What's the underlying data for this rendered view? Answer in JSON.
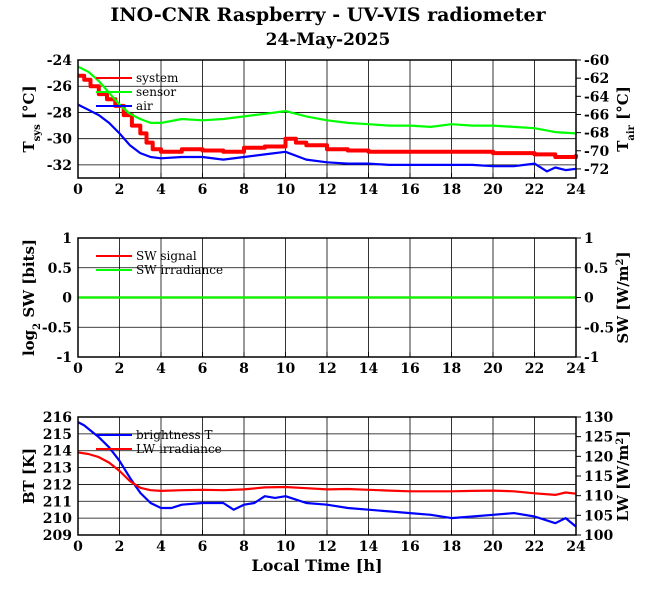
{
  "title": "INO-CNR Raspberry - UV-VIS radiometer",
  "subtitle": "24-May-2025",
  "colors": {
    "red": "#ff0000",
    "green": "#00ff00",
    "blue": "#0000ff"
  },
  "chart_data": [
    {
      "type": "line",
      "id": "temp",
      "xlabel": "",
      "ylabel_left": {
        "main": "T",
        "sub": "sys",
        "unit": " [°C]"
      },
      "ylabel_right": {
        "main": "T",
        "sub": "air",
        "unit": " [°C]"
      },
      "xlim": [
        0,
        24
      ],
      "ylim_left": [
        -33,
        -24
      ],
      "ylim_right": [
        -73,
        -60
      ],
      "xticks": [
        "0",
        "2",
        "4",
        "6",
        "8",
        "10",
        "12",
        "14",
        "16",
        "18",
        "20",
        "22",
        "24"
      ],
      "yticks_left": [
        "-24",
        "-26",
        "-28",
        "-30",
        "-32"
      ],
      "yticks_right": [
        "-60",
        "-62",
        "-64",
        "-66",
        "-68",
        "-70",
        "-72"
      ],
      "grid": true,
      "legend": "top-left",
      "series": [
        {
          "name": "system",
          "color": "red",
          "axis": "left",
          "style": "steps",
          "x": [
            0,
            0.3,
            0.6,
            1,
            1.4,
            1.8,
            2.2,
            2.6,
            3,
            3.3,
            3.6,
            4,
            4.5,
            5,
            6,
            7,
            8,
            9,
            10,
            10.5,
            11,
            12,
            13,
            14,
            16,
            18,
            20,
            22,
            23,
            24
          ],
          "y": [
            -25.2,
            -25.5,
            -26,
            -26.6,
            -27,
            -27.5,
            -28.2,
            -29,
            -29.6,
            -30.3,
            -30.8,
            -31,
            -31,
            -30.8,
            -30.9,
            -31,
            -30.7,
            -30.6,
            -30,
            -30.3,
            -30.5,
            -30.8,
            -30.9,
            -31,
            -31,
            -31,
            -31.1,
            -31.2,
            -31.4,
            -31.2
          ]
        },
        {
          "name": "sensor",
          "color": "green",
          "axis": "left",
          "style": "line",
          "x": [
            0,
            0.5,
            1,
            1.5,
            2,
            2.5,
            3,
            3.5,
            4,
            5,
            6,
            7,
            8,
            9,
            10,
            11,
            12,
            13,
            14,
            15,
            16,
            17,
            18,
            19,
            20,
            21,
            22,
            23,
            24
          ],
          "y": [
            -24.5,
            -24.9,
            -25.6,
            -26.5,
            -27.4,
            -28.1,
            -28.5,
            -28.8,
            -28.8,
            -28.5,
            -28.6,
            -28.5,
            -28.3,
            -28.1,
            -27.9,
            -28.3,
            -28.6,
            -28.8,
            -28.9,
            -29,
            -29,
            -29.1,
            -28.9,
            -29,
            -29,
            -29.1,
            -29.2,
            -29.5,
            -29.6
          ]
        },
        {
          "name": "air",
          "color": "blue",
          "axis": "left",
          "style": "line",
          "x": [
            0,
            0.5,
            1,
            1.5,
            2,
            2.5,
            3,
            3.5,
            4,
            5,
            6,
            7,
            8,
            9,
            10,
            11,
            12,
            13,
            14,
            15,
            16,
            17,
            18,
            19,
            20,
            21,
            22,
            22.6,
            23,
            23.5,
            24
          ],
          "y": [
            -27.4,
            -27.8,
            -28.2,
            -28.8,
            -29.6,
            -30.5,
            -31.1,
            -31.4,
            -31.5,
            -31.4,
            -31.4,
            -31.6,
            -31.4,
            -31.2,
            -31,
            -31.6,
            -31.8,
            -31.9,
            -31.9,
            -32,
            -32,
            -32,
            -32,
            -32,
            -32.1,
            -32.1,
            -31.9,
            -32.5,
            -32.2,
            -32.4,
            -32.3
          ]
        }
      ]
    },
    {
      "type": "line",
      "id": "sw",
      "xlabel": "",
      "ylabel_left": {
        "main": "log",
        "sub": "2",
        "unit": " SW [bits]"
      },
      "ylabel_right": {
        "main": "SW [W/m",
        "sup": "2",
        "unit": "]"
      },
      "xlim": [
        0,
        24
      ],
      "ylim_left": [
        -1,
        1
      ],
      "ylim_right": [
        -1,
        1
      ],
      "xticks": [
        "0",
        "2",
        "4",
        "6",
        "8",
        "10",
        "12",
        "14",
        "16",
        "18",
        "20",
        "22",
        "24"
      ],
      "yticks_left": [
        "1",
        "0.5",
        "0",
        "-0.5",
        "-1"
      ],
      "yticks_right": [
        "1",
        "0.5",
        "0",
        "-0.5",
        "-1"
      ],
      "grid": true,
      "legend": "top-left",
      "series": [
        {
          "name": "SW signal",
          "color": "red",
          "axis": "left",
          "style": "line",
          "x": [
            0,
            24
          ],
          "y": [
            0,
            0
          ]
        },
        {
          "name": "SW irradiance",
          "color": "green",
          "axis": "left",
          "style": "line",
          "x": [
            0,
            24
          ],
          "y": [
            0,
            0
          ]
        }
      ]
    },
    {
      "type": "line",
      "id": "bt",
      "xlabel": "Local Time [h]",
      "ylabel_left": {
        "main": "BT [K]"
      },
      "ylabel_right": {
        "main": "LW [W/m",
        "sup": "2",
        "unit": "]"
      },
      "xlim": [
        0,
        24
      ],
      "ylim_left": [
        209,
        216
      ],
      "ylim_right": [
        100,
        130
      ],
      "xticks": [
        "0",
        "2",
        "4",
        "6",
        "8",
        "10",
        "12",
        "14",
        "16",
        "18",
        "20",
        "22",
        "24"
      ],
      "yticks_left": [
        "216",
        "215",
        "214",
        "213",
        "212",
        "211",
        "210",
        "209"
      ],
      "yticks_right": [
        "130",
        "125",
        "120",
        "115",
        "110",
        "105",
        "100"
      ],
      "grid": true,
      "legend": "top-left",
      "series": [
        {
          "name": "brightness T",
          "color": "blue",
          "axis": "left",
          "style": "line",
          "x": [
            0,
            0.3,
            0.6,
            1,
            1.5,
            2,
            2.5,
            3,
            3.5,
            4,
            4.5,
            5,
            6,
            7,
            7.5,
            8,
            8.5,
            9,
            9.5,
            10,
            10.5,
            11,
            12,
            13,
            14,
            15,
            16,
            17,
            18,
            19,
            20,
            21,
            22,
            22.5,
            23,
            23.5,
            24
          ],
          "y": [
            215.7,
            215.5,
            215.2,
            214.8,
            214.2,
            213.4,
            212.4,
            211.5,
            210.9,
            210.6,
            210.6,
            210.8,
            210.9,
            210.9,
            210.5,
            210.8,
            210.9,
            211.3,
            211.2,
            211.3,
            211.1,
            210.9,
            210.8,
            210.6,
            210.5,
            210.4,
            210.3,
            210.2,
            210,
            210.1,
            210.2,
            210.3,
            210.1,
            209.9,
            209.7,
            210,
            209.5
          ]
        },
        {
          "name": "LW irradiance",
          "color": "red",
          "axis": "right",
          "style": "line",
          "x": [
            0,
            0.5,
            1,
            1.5,
            2,
            2.5,
            3,
            3.5,
            4,
            5,
            6,
            7,
            8,
            9,
            10,
            11,
            12,
            13,
            14,
            15,
            16,
            17,
            18,
            19,
            20,
            21,
            22,
            23,
            23.5,
            24
          ],
          "y": [
            121,
            120.6,
            119.8,
            118.4,
            116.3,
            113.7,
            112,
            111.4,
            111.2,
            111.4,
            111.5,
            111.4,
            111.6,
            112.1,
            112.2,
            111.9,
            111.6,
            111.7,
            111.5,
            111.3,
            111.1,
            111.1,
            111.1,
            111.2,
            111.3,
            111.1,
            110.6,
            110.2,
            110.8,
            110.5
          ]
        }
      ]
    }
  ]
}
